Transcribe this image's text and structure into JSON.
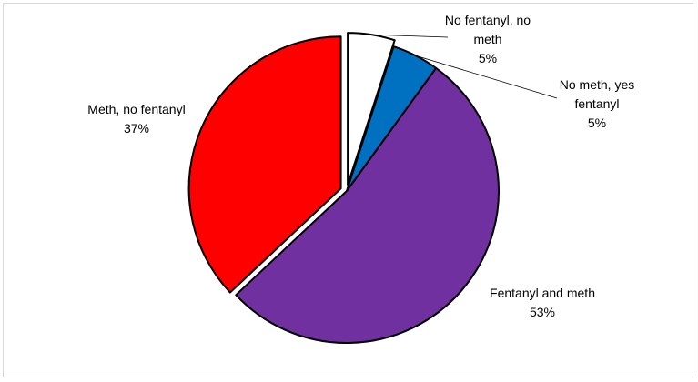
{
  "chart_data": {
    "type": "pie",
    "title": "",
    "start_angle_deg": 0,
    "direction": "clockwise",
    "slices": [
      {
        "label_lines": [
          "No fentanyl, no",
          "meth"
        ],
        "value_label": "5%",
        "value": 5,
        "color": "#ffffff",
        "exploded": true
      },
      {
        "label_lines": [
          "No meth, yes",
          "fentanyl"
        ],
        "value_label": "5%",
        "value": 5,
        "color": "#0070c0",
        "exploded": false
      },
      {
        "label_lines": [
          "Fentanyl and meth"
        ],
        "value_label": "53%",
        "value": 53,
        "color": "#7030a0",
        "exploded": false
      },
      {
        "label_lines": [
          "Meth, no fentanyl"
        ],
        "value_label": "37%",
        "value": 37,
        "color": "#ff0000",
        "exploded": true
      }
    ],
    "legend": "none"
  }
}
